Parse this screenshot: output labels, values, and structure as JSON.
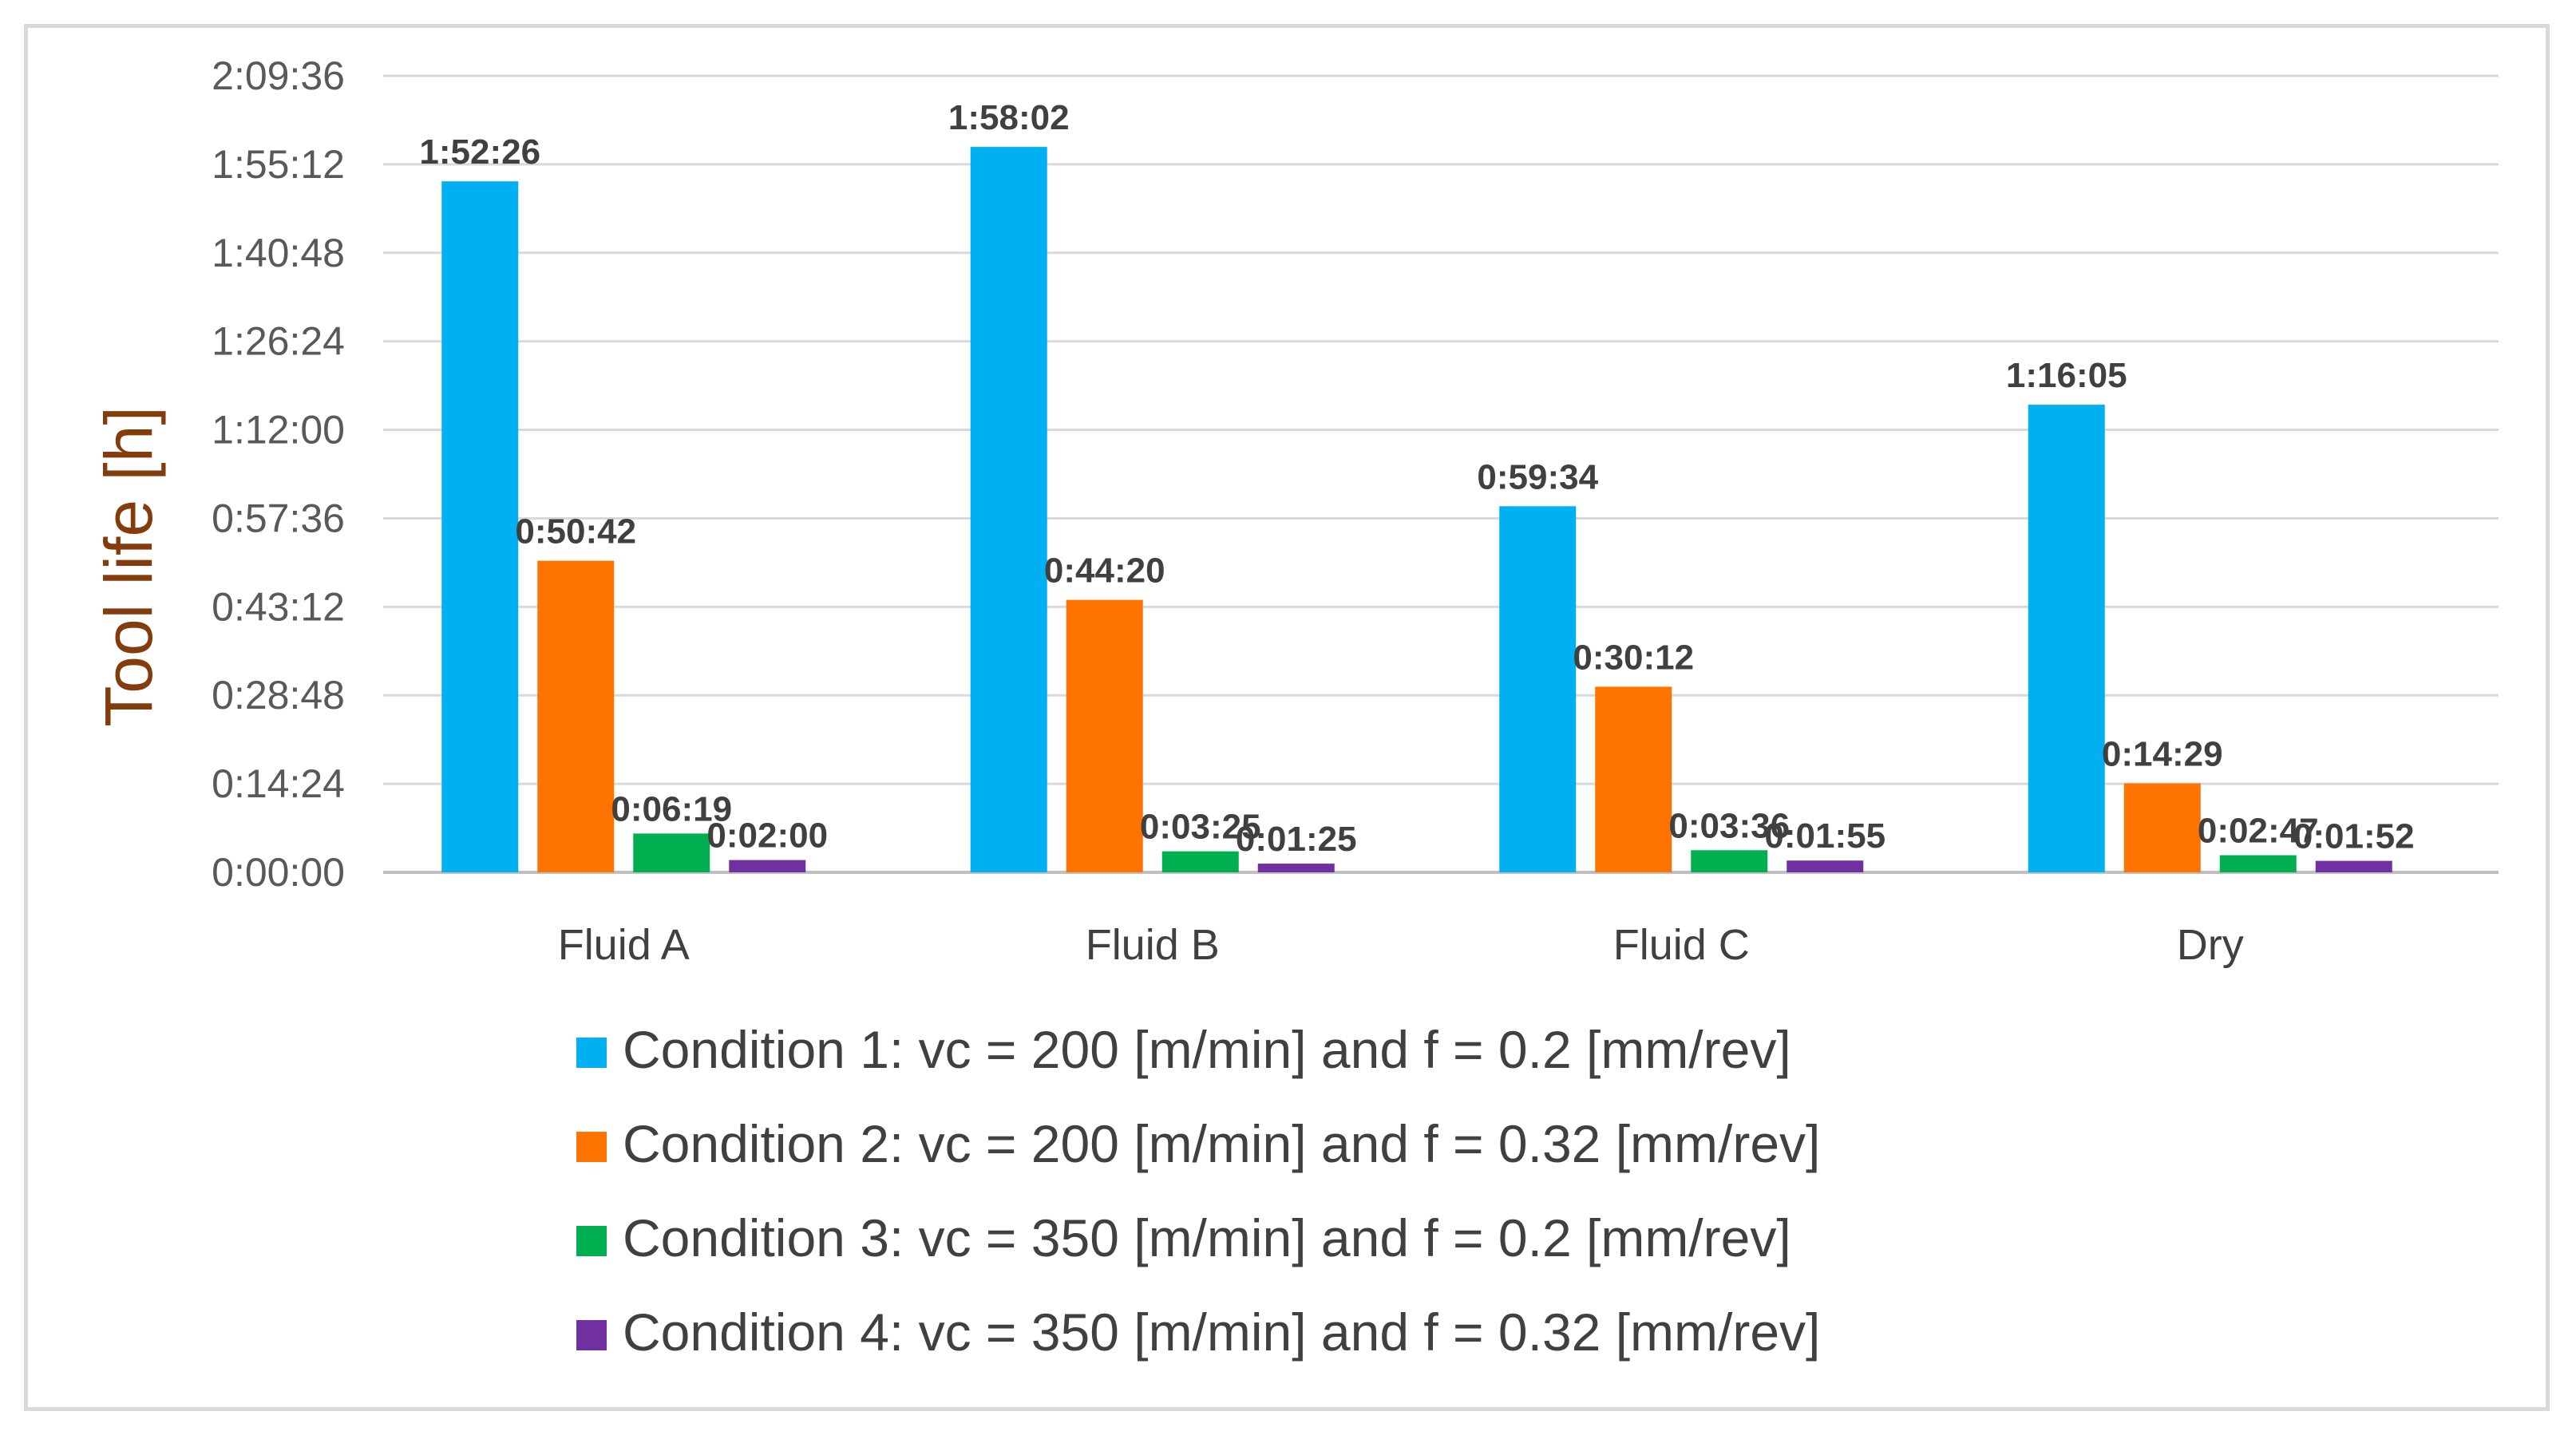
{
  "chart_data": {
    "type": "bar",
    "title": "",
    "xlabel": "",
    "ylabel": "Tool life [h]",
    "y_tick_labels": [
      "0:00:00",
      "0:14:24",
      "0:28:48",
      "0:43:12",
      "0:57:36",
      "1:12:00",
      "1:26:24",
      "1:40:48",
      "1:55:12",
      "2:09:36"
    ],
    "ylim_seconds": [
      0,
      7776
    ],
    "grid": true,
    "legend_position": "bottom",
    "categories": [
      "Fluid A",
      "Fluid B",
      "Fluid C",
      "Dry"
    ],
    "series": [
      {
        "name": "Condition 1: vc = 200 [m/min] and f = 0.2 [mm/rev]",
        "color": "#00b0f0",
        "labels": [
          "1:52:26",
          "1:58:02",
          "0:59:34",
          "1:16:05"
        ]
      },
      {
        "name": "Condition 2: vc = 200 [m/min] and f = 0.32 [mm/rev]",
        "color": "#ff7300",
        "labels": [
          "0:50:42",
          "0:44:20",
          "0:30:12",
          "0:14:29"
        ]
      },
      {
        "name": "Condition 3: vc = 350 [m/min] and f = 0.2 [mm/rev]",
        "color": "#00b050",
        "labels": [
          "0:06:19",
          "0:03:25",
          "0:03:36",
          "0:02:47"
        ]
      },
      {
        "name": "Condition 4: vc = 350 [m/min] and f = 0.32 [mm/rev]",
        "color": "#7030a0",
        "labels": [
          "0:02:00",
          "0:01:25",
          "0:01:55",
          "0:01:52"
        ]
      }
    ]
  }
}
